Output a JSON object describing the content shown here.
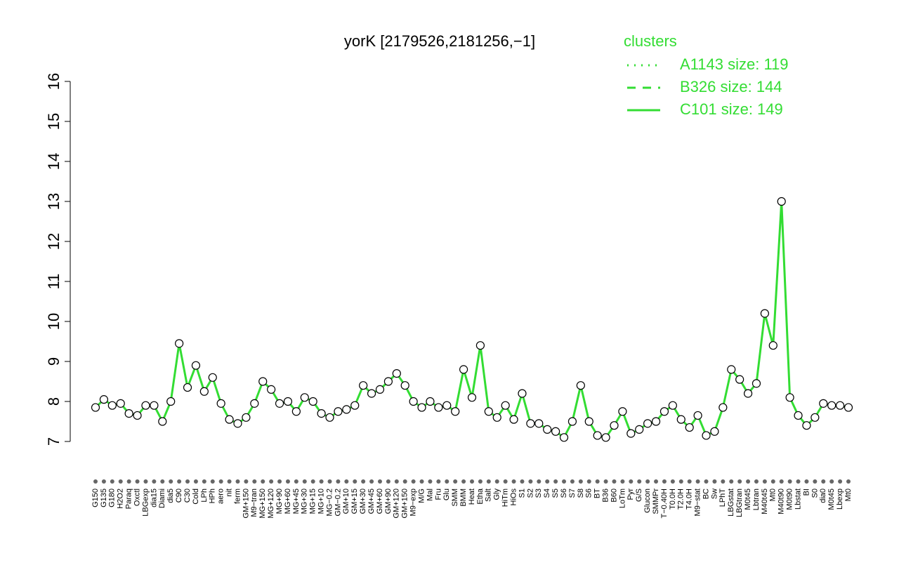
{
  "chart_data": {
    "type": "line",
    "title": "yorK [2179526,2181256,−1]",
    "categories": [
      "G150",
      "G135",
      "G180",
      "H2O2",
      "Paraq",
      "Oxctl",
      "LBGexp",
      "dia15",
      "Diami",
      "dia5",
      "C90",
      "C30",
      "Cold",
      "LPh",
      "HPh",
      "aero",
      "nit",
      "ferm",
      "GM+150",
      "M9−tran",
      "MG+150",
      "MG+120",
      "MG+90",
      "MG+60",
      "MG+45",
      "MG+30",
      "MG+15",
      "MG+10",
      "MG−0.2",
      "GM−0.2",
      "GM+10",
      "GM+15",
      "GM+30",
      "GM+45",
      "GM+60",
      "GM+90",
      "GM+120",
      "GM+150",
      "M9−exp",
      "M/G",
      "Mal",
      "Fru",
      "Glu",
      "SMM",
      "BMM",
      "Heat",
      "Etha",
      "Salt",
      "Gly",
      "HiTm",
      "HiOs",
      "S1",
      "S2",
      "S3",
      "S4",
      "S5",
      "S6",
      "S7",
      "S8",
      "S6",
      "BT",
      "B36",
      "B60",
      "LoTm",
      "Pyr",
      "G/S",
      "Glucon",
      "SMMPr",
      "T−0.40H",
      "T0.0H",
      "T2.0H",
      "T4.0H",
      "M9−stat",
      "BC",
      "Sw",
      "LPhT",
      "LBGstat",
      "LBGtran",
      "M0t45",
      "Lbtran",
      "M40t45",
      "Mt0",
      "M40t90",
      "M0t90",
      "Lbstat",
      "BI",
      "S0",
      "dia0",
      "M0t45",
      "Lbexp",
      "Mt0"
    ],
    "values": [
      7.85,
      8.05,
      7.9,
      7.95,
      7.7,
      7.65,
      7.9,
      7.9,
      7.5,
      8.0,
      9.45,
      8.35,
      8.9,
      8.25,
      8.6,
      7.95,
      7.55,
      7.45,
      7.6,
      7.95,
      8.5,
      8.3,
      7.95,
      8.0,
      7.75,
      8.1,
      8.0,
      7.7,
      7.6,
      7.75,
      7.8,
      7.9,
      8.4,
      8.2,
      8.3,
      8.5,
      8.7,
      8.4,
      8.0,
      7.85,
      8.0,
      7.85,
      7.9,
      7.75,
      8.8,
      8.1,
      9.4,
      7.75,
      7.6,
      7.9,
      7.55,
      8.2,
      7.45,
      7.45,
      7.3,
      7.25,
      7.1,
      7.5,
      8.4,
      7.5,
      7.15,
      7.1,
      7.4,
      7.75,
      7.2,
      7.3,
      7.45,
      7.5,
      7.75,
      7.9,
      7.55,
      7.35,
      7.65,
      7.15,
      7.25,
      7.85,
      8.8,
      8.55,
      8.2,
      8.45,
      10.2,
      9.4,
      13.0,
      8.1,
      7.65,
      7.4,
      7.6,
      7.95,
      7.9,
      7.9,
      7.85
    ],
    "color": "#33dd33",
    "ylim": [
      7,
      16
    ],
    "yticks": [
      7,
      8,
      9,
      10,
      11,
      12,
      13,
      14,
      15,
      16
    ],
    "legend": {
      "title": "clusters",
      "position": "top-right",
      "entries": [
        {
          "name": "A1143 size: 119",
          "dash": "dotted"
        },
        {
          "name": "B326 size: 144",
          "dash": "dashed"
        },
        {
          "name": "C101 size: 149",
          "dash": "solid"
        }
      ]
    }
  }
}
